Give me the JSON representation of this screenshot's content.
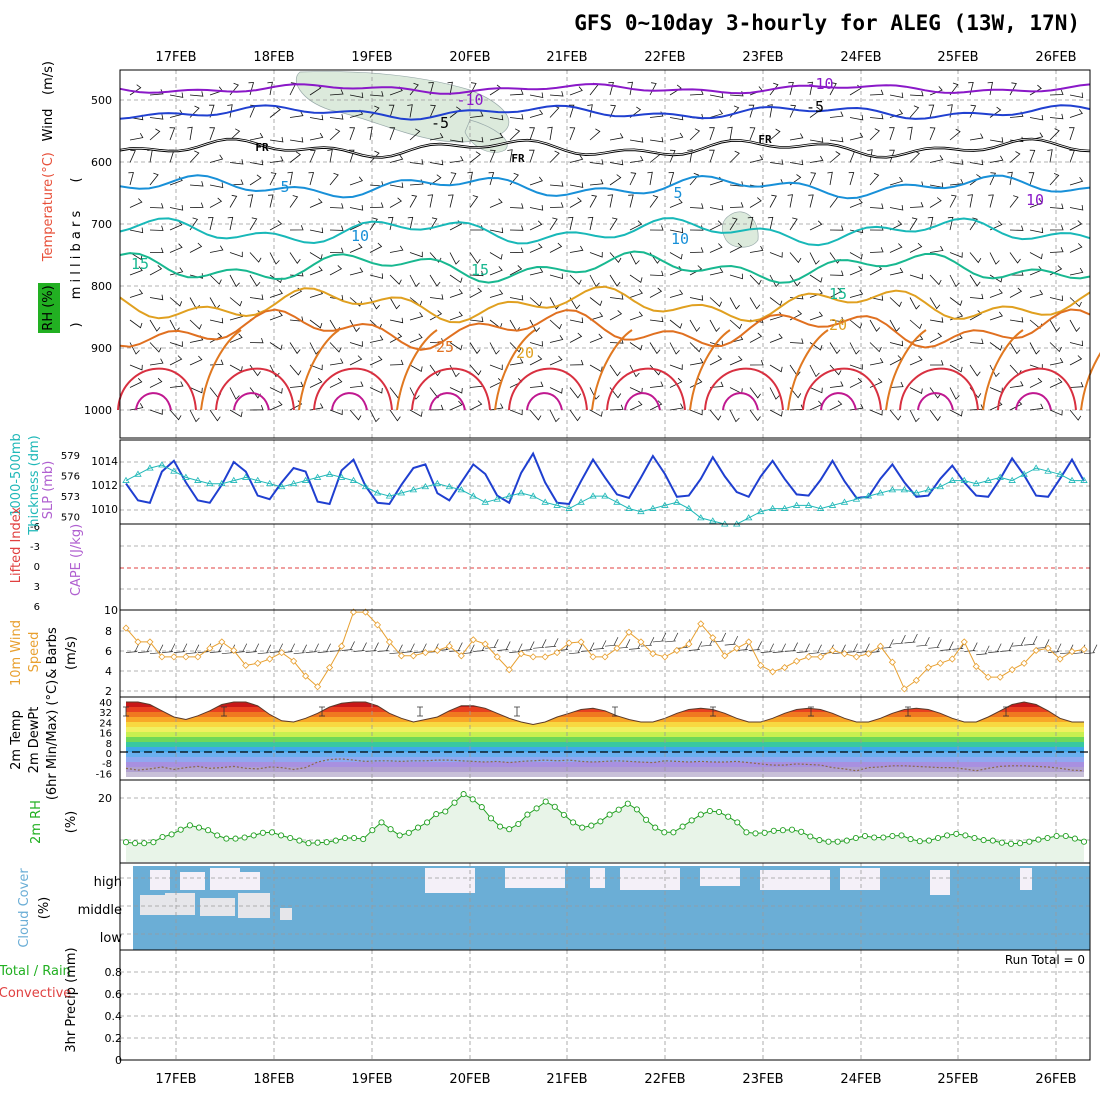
{
  "title": "GFS 0~10day 3-hourly for ALEG (13W, 17N)",
  "dates": [
    "17FEB",
    "18FEB",
    "19FEB",
    "20FEB",
    "21FEB",
    "22FEB",
    "23FEB",
    "24FEB",
    "25FEB",
    "26FEB"
  ],
  "colors": {
    "temp": "#e8503a",
    "wind": "#000000",
    "rh": "#22b022",
    "slp": "#1f3fd0",
    "thick": "#20b8b8",
    "lifted": "#e04040",
    "cape": "#b060d0",
    "ws": "#e8a030",
    "cloud": "#6baed6",
    "precip_total": "#22b022",
    "precip_conv": "#e04040"
  },
  "panels": {
    "upper": {
      "ylabels": [
        "Wind",
        "(m/s)",
        "Temperature",
        "(°C)",
        "RH (%)",
        "(",
        "m i l l i b a r s",
        ")"
      ],
      "ticks": [
        "500",
        "600",
        "700",
        "800",
        "900",
        "1000"
      ],
      "levels": [
        500,
        600,
        700,
        800,
        900,
        1000
      ],
      "contours": [
        {
          "label": "-10",
          "color": "#8a18c8",
          "base": 482
        },
        {
          "label": "-5",
          "color": "#2040d0",
          "base": 520
        },
        {
          "label": "FR",
          "color": "#000000",
          "base": 578
        },
        {
          "label": "5",
          "color": "#1890d8",
          "base": 640
        },
        {
          "label": "10",
          "color": "#18b8b8",
          "base": 712
        },
        {
          "label": "15",
          "color": "#18b890",
          "base": 770
        },
        {
          "label": "20",
          "color": "#e0a020",
          "base": 830
        },
        {
          "label": "25",
          "color": "#e07020",
          "base": 870
        }
      ],
      "contour_labels": [
        "-10",
        "-10",
        "-5",
        "-5",
        "FR",
        "FR",
        "FR",
        "5",
        "5",
        "10",
        "10",
        "15",
        "15",
        "15",
        "20",
        "20",
        "25",
        "10"
      ]
    },
    "slp": {
      "ylabels": [
        "1000-500mb",
        "Thickness (dm)",
        "SLP (mb)"
      ],
      "left_ticks": [
        "579",
        "576",
        "573",
        "570"
      ],
      "right_ticks": [
        "1014",
        "1012",
        "1010"
      ],
      "slp": [
        1012.2,
        1010.8,
        1010.6,
        1013.2,
        1014.1,
        1012.3,
        1010.8,
        1010.6,
        1012.1,
        1014,
        1013.2,
        1011.2,
        1010.9,
        1012.3,
        1013.5,
        1013.2,
        1010.7,
        1010.5,
        1013.3,
        1014.2,
        1012,
        1010.6,
        1010.5,
        1012.1,
        1013.5,
        1013.8,
        1011.4,
        1010.8,
        1012.3,
        1013.8,
        1013,
        1011.2,
        1010.6,
        1013.1,
        1014.7,
        1012.3,
        1010.6,
        1010.5,
        1012.4,
        1014.2,
        1012.7,
        1011.3,
        1011,
        1012.7,
        1014.5,
        1013,
        1011.1,
        1011.2,
        1012.6,
        1014.4,
        1012.8,
        1011.5,
        1011.1,
        1012.8,
        1014.1,
        1012.6,
        1011.3,
        1011.2,
        1012.5,
        1014.1,
        1012.4,
        1011,
        1011.1,
        1012.6,
        1013.8,
        1012.3,
        1011.1,
        1011.2,
        1012.6,
        1013.7,
        1012.3,
        1011.2,
        1011.1,
        1012.6,
        1014.3,
        1012.9,
        1011.2,
        1011.1,
        1012.6,
        1014.2,
        1012.4
      ],
      "thick": [
        576.5,
        577.5,
        578.5,
        579,
        578,
        577,
        576.5,
        576,
        576,
        576.5,
        577,
        576.5,
        576,
        575.5,
        576,
        576.5,
        577,
        577.5,
        577,
        576.5,
        575.5,
        574.5,
        574,
        574.5,
        575,
        575.5,
        576,
        575.5,
        575,
        574,
        573,
        573.5,
        574,
        574.5,
        574,
        573,
        572.5,
        572,
        573,
        574,
        574,
        573,
        572,
        571.5,
        572,
        572.5,
        573,
        572,
        570.5,
        570,
        569.5,
        569.5,
        570.5,
        571.5,
        572,
        572,
        572.5,
        572.5,
        572,
        572.5,
        573,
        573.5,
        574,
        574.5,
        575,
        575,
        574.5,
        575,
        575.5,
        576.5,
        576.5,
        576,
        576.5,
        577,
        576.5,
        577.5,
        578.5,
        578,
        577.5,
        576.5,
        576.5
      ]
    },
    "li": {
      "ylabels": [
        "Lifted Index",
        "CAPE (J/kg)"
      ],
      "left_ticks": [
        "-6",
        "-3",
        "0",
        "3",
        "6"
      ],
      "right_ticks": [
        "10"
      ]
    },
    "wind10": {
      "ylabels": [
        "10m Wind",
        "Speed",
        "& Barbs",
        "(m/s)"
      ],
      "ticks": [
        "8",
        "6",
        "4",
        "2"
      ],
      "speed": [
        7.9,
        6.6,
        6.6,
        5.2,
        5.2,
        5.2,
        5.2,
        6,
        6.6,
        5.8,
        4.4,
        4.6,
        5,
        5.6,
        4.8,
        3.4,
        2.4,
        4.2,
        6.2,
        9.4,
        9.4,
        8.2,
        6.6,
        5.3,
        5.3,
        5.6,
        5.8,
        6.2,
        5.3,
        6.8,
        6.4,
        5.2,
        4,
        5.5,
        5.2,
        5.2,
        5.6,
        6.5,
        6.6,
        5.2,
        5.2,
        6,
        7.5,
        6.6,
        5.5,
        5.2,
        5.8,
        6.4,
        8.3,
        7,
        5.3,
        6,
        6.6,
        4.4,
        3.8,
        4.2,
        4.8,
        5.2,
        5.2,
        5.8,
        5.5,
        5.2,
        5.5,
        6.2,
        4.7,
        2.2,
        3,
        4.2,
        4.6,
        5,
        6.6,
        4.3,
        3.3,
        3.3,
        4,
        4.6,
        5.8,
        6,
        5,
        5.7,
        5.9
      ],
      "barb_speed": [
        5.6,
        5.6,
        5.5,
        5.6,
        5.6,
        5.5,
        5.6,
        5.6,
        5.5,
        5.6,
        5.6,
        5.5,
        5.6,
        5.6,
        5.5,
        5.6,
        5.6,
        5.7,
        5.8,
        5.7,
        5.7,
        5.7,
        5.5,
        5.6,
        5.6,
        5.6,
        5.8,
        5.7,
        5.5,
        5.7,
        6,
        5.8,
        5.6,
        5.8,
        6,
        6.1,
        5.8,
        5.5,
        5.7,
        5.9,
        6.2,
        6,
        5.9,
        6.2,
        6.6,
        6.6,
        6,
        5.8,
        6.2,
        6.6,
        6.3,
        5.8,
        5.8,
        5.6,
        5.6,
        5.7,
        5.6,
        5.5,
        5.5,
        5.5,
        5.6,
        5.6,
        5.6,
        6,
        6.4,
        6.5,
        6.2,
        6,
        5.8,
        5.9,
        5.7,
        5.4,
        5.6,
        5.7,
        6.2,
        6.3,
        6,
        5.6,
        5.5,
        5.5,
        5.5
      ]
    },
    "temp": {
      "ylabels": [
        "2m Temp",
        "2m DewPt",
        "(6hr Min/Max) (°C)"
      ],
      "ticks": [
        "40",
        "32",
        "24",
        "16",
        "8",
        "0",
        "-8",
        "-16"
      ],
      "temp": [
        40,
        40,
        38,
        33,
        28,
        26,
        29,
        33,
        38,
        40,
        40,
        37,
        30,
        25,
        24,
        27,
        31,
        36,
        39,
        40,
        40,
        37,
        31,
        27,
        24,
        26,
        28,
        33,
        37,
        37,
        35,
        31,
        27,
        24,
        22,
        24,
        28,
        31,
        34,
        35,
        33,
        29,
        26,
        24,
        24,
        27,
        31,
        34,
        35,
        34,
        31,
        27,
        24,
        24,
        27,
        31,
        34,
        35,
        34,
        31,
        27,
        24,
        24,
        27,
        31,
        34,
        35,
        34,
        31,
        27,
        24,
        24,
        28,
        33,
        38,
        40,
        38,
        33,
        27,
        24,
        24
      ],
      "dewpt": [
        -13,
        -14.5,
        -13.5,
        -12,
        -14,
        -12.5,
        -11.5,
        -13,
        -12.5,
        -11.5,
        -13,
        -13.5,
        -12,
        -12.5,
        -14,
        -12.5,
        -8,
        -6,
        -5.5,
        -6.5,
        -7.5,
        -7,
        -7,
        -7.5,
        -7,
        -7,
        -6.5,
        -6.5,
        -7,
        -7.5,
        -8,
        -7.5,
        -8.5,
        -7.5,
        -7,
        -6.5,
        -7,
        -6.5,
        -7.5,
        -8,
        -7.5,
        -7,
        -7.5,
        -8,
        -8.5,
        -7,
        -7.5,
        -8,
        -7.5,
        -8,
        -8,
        -7.5,
        -8.5,
        -9.5,
        -10.5,
        -10.5,
        -9.5,
        -10,
        -10.5,
        -12.5,
        -13.5,
        -15,
        -12.5,
        -12,
        -11,
        -11,
        -11.5,
        -12,
        -12.5,
        -12.5,
        -13.5,
        -15,
        -13,
        -11.5,
        -11,
        -11,
        -11.5,
        -12,
        -13,
        -14.5,
        -15
      ]
    },
    "rh": {
      "ylabels": [
        "2m RH",
        "(%)"
      ],
      "ticks": [
        "20"
      ],
      "rh": [
        3,
        2.6,
        2.6,
        3,
        5,
        6,
        7.8,
        9.5,
        8.6,
        7.6,
        5.6,
        4.4,
        4.4,
        4.8,
        5.6,
        6.6,
        6.8,
        5.6,
        4.6,
        3.6,
        2.6,
        2.8,
        3,
        3.6,
        4.6,
        4.6,
        4.2,
        7.6,
        10.6,
        8,
        5.6,
        6.6,
        8.6,
        10.6,
        13.8,
        14.8,
        18.2,
        21.5,
        19.5,
        16.5,
        12.2,
        9,
        8,
        10,
        13.6,
        16,
        18.6,
        16.6,
        13.5,
        10.6,
        8.6,
        9.4,
        11,
        13.6,
        15.5,
        17.8,
        15.6,
        11.6,
        8.6,
        6.8,
        6.8,
        9,
        11.4,
        13.6,
        15,
        14.6,
        12.8,
        10.6,
        6.8,
        6.4,
        6.6,
        7.4,
        7.6,
        7.8,
        7,
        5.2,
        3.8,
        3.2,
        3.2,
        3.6,
        4.6,
        5.4,
        4.8,
        4.8,
        5.4,
        5.6,
        4.2,
        3.4,
        3.6,
        4.6,
        5.6,
        6.2,
        5.6,
        4.6,
        3.8,
        3.6,
        2.8,
        2.4,
        2.6,
        3.2,
        4,
        4.6,
        5.4,
        5.4,
        4.4,
        3.2
      ]
    },
    "cloud": {
      "ylabels": [
        "Cloud Cover",
        "(%)"
      ],
      "ticks": [
        "high",
        "middle",
        "low"
      ]
    },
    "precip": {
      "ylabels_left": [
        "Total / Rain",
        "Convective"
      ],
      "ylabels": [
        "3hr Precip (mm)"
      ],
      "ticks": [
        "0.8",
        "0.6",
        "0.4",
        "0.2",
        "0"
      ],
      "run_total": "Run Total = 0"
    }
  }
}
